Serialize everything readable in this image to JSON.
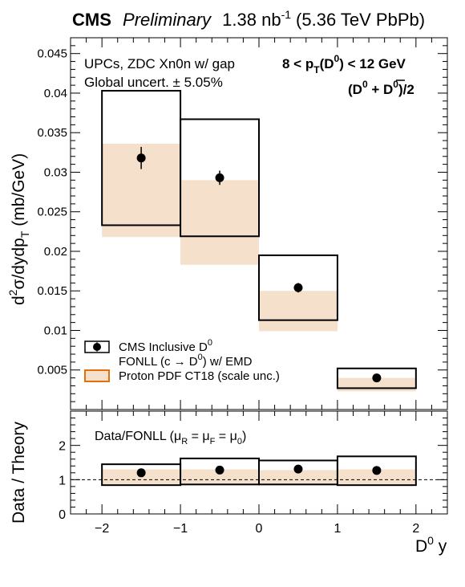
{
  "header": {
    "experiment": "CMS",
    "status": "Preliminary",
    "lumi_value": "1.38 nb",
    "lumi_exp": "-1",
    "lumi_energy": "(5.36 TeV PbPb)"
  },
  "annotations": {
    "selection": "UPCs, ZDC Xn0n w/ gap",
    "global_uncert": "Global uncert. ± 5.05%",
    "pt_range_prefix": "8 < p",
    "pt_range_sub": "T",
    "pt_range_mid": "(D",
    "pt_range_sup": "0",
    "pt_range_suffix": ") < 12 GeV",
    "particle_open": "(D",
    "particle_sup": "0",
    "particle_plus": " + ",
    "particle_bar": "D",
    "particle_bar_sup": "0",
    "particle_close": ")/2",
    "ratio_label_main": "Data/FONLL (",
    "ratio_mu": "μ",
    "ratio_sub_r": "R",
    "ratio_eq1": " = ",
    "ratio_sub_f": "F",
    "ratio_eq2": " = ",
    "ratio_sub_0": "0",
    "ratio_close": ")"
  },
  "axes": {
    "ylabel_top_prefix": "d",
    "ylabel_top_sup": "2",
    "ylabel_top_mid": "σ/dydp",
    "ylabel_top_sub": "T",
    "ylabel_top_unit": " (mb/GeV)",
    "ylabel_bottom": "Data / Theory",
    "xlabel_main": "D",
    "xlabel_sup": "0",
    "xlabel_var": " y"
  },
  "legend": {
    "data_label": "CMS Inclusive D",
    "data_sup": "0",
    "fonll_label_a": "FONLL (c → D",
    "fonll_sup": "0",
    "fonll_label_b": ") w/ EMD",
    "pdf_label": "Proton PDF CT18 (scale unc.)"
  },
  "colors": {
    "band_fill": "#f5e0cc",
    "legend_band_border": "#e07010",
    "line": "#000000"
  },
  "chart_data": [
    {
      "type": "bar",
      "panel": "cross-section",
      "x_edges": [
        [
          -2,
          -1
        ],
        [
          -1,
          0
        ],
        [
          0,
          1
        ],
        [
          1,
          2
        ]
      ],
      "xlim": [
        -2.4,
        2.4
      ],
      "ylim": [
        0,
        0.047
      ],
      "y_ticks": [
        0.005,
        0.01,
        0.015,
        0.02,
        0.025,
        0.03,
        0.035,
        0.04,
        0.045
      ],
      "y_tick_labels": [
        "0.005",
        "0.01",
        "0.015",
        "0.02",
        "0.025",
        "0.03",
        "0.035",
        "0.04",
        "0.045"
      ],
      "series": [
        {
          "name": "CMS Inclusive D0",
          "x": [
            -1.5,
            -0.5,
            0.5,
            1.5
          ],
          "y": [
            0.0318,
            0.0293,
            0.0154,
            0.004
          ],
          "yerr": [
            0.0014,
            0.0009,
            0.0006,
            0.0004
          ]
        },
        {
          "name": "FONLL (c → D0) w/ EMD",
          "low": [
            0.0233,
            0.0219,
            0.0113,
            0.0027
          ],
          "high": [
            0.0403,
            0.0367,
            0.0195,
            0.0052
          ]
        },
        {
          "name": "Proton PDF CT18 (scale unc.)",
          "low": [
            0.0218,
            0.0183,
            0.0099,
            0.0023
          ],
          "high": [
            0.0336,
            0.029,
            0.015,
            0.004
          ]
        }
      ]
    },
    {
      "type": "bar",
      "panel": "ratio",
      "x_edges": [
        [
          -2,
          -1
        ],
        [
          -1,
          0
        ],
        [
          0,
          1
        ],
        [
          1,
          2
        ]
      ],
      "xlim": [
        -2.4,
        2.4
      ],
      "ylim": [
        0,
        3
      ],
      "y_ticks": [
        0,
        1,
        2
      ],
      "y_tick_labels": [
        "0",
        "1",
        "2"
      ],
      "x_ticks": [
        -2,
        -1,
        0,
        1,
        2
      ],
      "x_tick_labels": [
        "−2",
        "−1",
        "0",
        "1",
        "2"
      ],
      "reference_line": 1,
      "series": [
        {
          "name": "Data/FONLL",
          "x": [
            -1.5,
            -0.5,
            0.5,
            1.5
          ],
          "y": [
            1.2,
            1.28,
            1.31,
            1.27
          ],
          "yerr": [
            0.07,
            0.05,
            0.05,
            0.04
          ]
        },
        {
          "name": "FONLL band",
          "low": [
            0.84,
            0.86,
            0.86,
            0.84
          ],
          "high": [
            1.45,
            1.62,
            1.56,
            1.68
          ]
        },
        {
          "name": "PDF band",
          "low": [
            0.86,
            0.88,
            0.86,
            0.86
          ],
          "high": [
            1.3,
            1.3,
            1.28,
            1.3
          ]
        }
      ]
    }
  ]
}
